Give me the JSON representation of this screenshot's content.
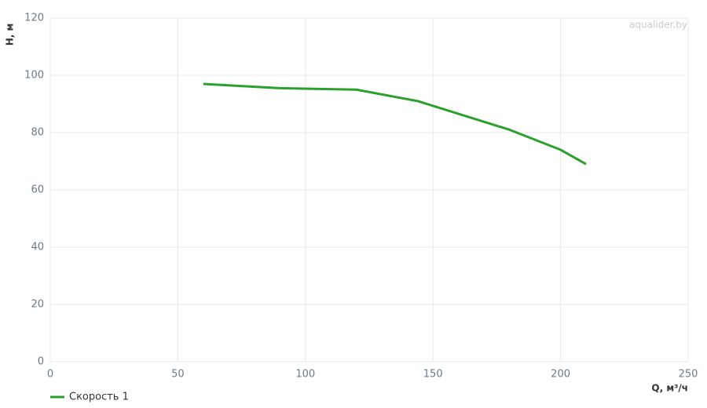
{
  "chart_data": {
    "type": "line",
    "xlabel": "Q, м³/ч",
    "ylabel": "H, м",
    "watermark": "aqualider.by",
    "x": [
      60,
      90,
      120,
      144,
      180,
      200,
      210
    ],
    "series": [
      {
        "name": "Скорость 1",
        "color": "#2ca02c",
        "values": [
          97,
          95.5,
          95,
          91,
          81,
          74,
          69
        ]
      }
    ],
    "xlim": [
      0,
      250
    ],
    "xticks": [
      0,
      50,
      100,
      150,
      200,
      250
    ],
    "ylim": [
      0,
      120
    ],
    "yticks": [
      0,
      20,
      40,
      60,
      80,
      100,
      120
    ],
    "grid": true,
    "legend": "bottom-left"
  }
}
